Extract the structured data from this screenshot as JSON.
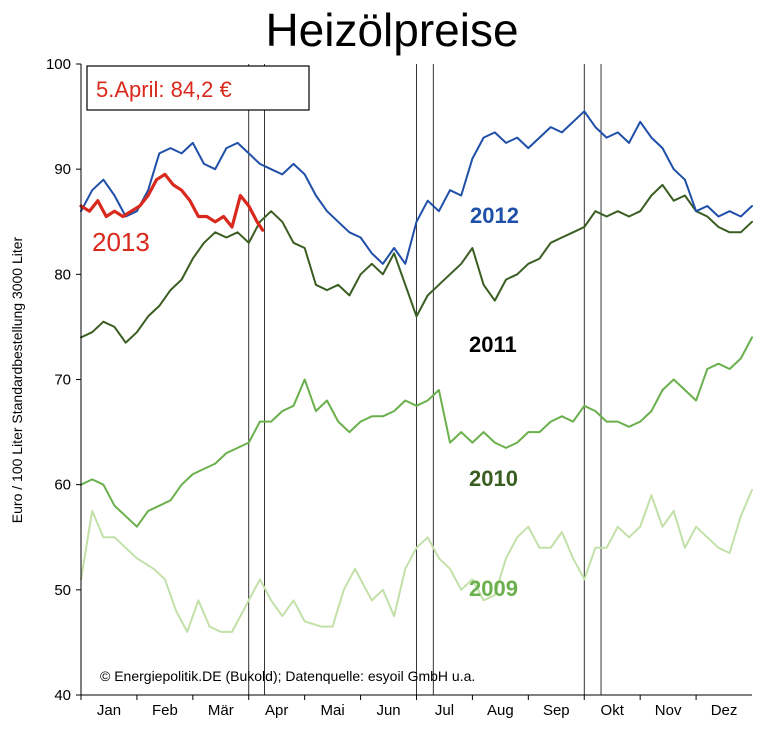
{
  "chart_data": {
    "type": "line",
    "title": "Heizölpreise",
    "ylabel": "Euro / 100 Liter Standardbestellung 3000 Liter",
    "ylim": [
      40,
      100
    ],
    "yticks": [
      40,
      50,
      60,
      70,
      80,
      90,
      100
    ],
    "months": [
      "Jan",
      "Feb",
      "Mär",
      "Apr",
      "Mai",
      "Jun",
      "Jul",
      "Aug",
      "Sep",
      "Okt",
      "Nov",
      "Dez"
    ],
    "annotation": "5.April: 84,2 €",
    "credit": "© Energiepolitik.DE (Bukold); Datenquelle: esyoil GmbH u.a.",
    "grid": "vertical quarter lines",
    "series": [
      {
        "name": "2009",
        "color": "#c2e0a8",
        "x": [
          0,
          0.2,
          0.4,
          0.6,
          0.8,
          1.0,
          1.3,
          1.5,
          1.7,
          1.9,
          2.1,
          2.3,
          2.5,
          2.7,
          2.9,
          3.2,
          3.4,
          3.6,
          3.8,
          4.0,
          4.3,
          4.5,
          4.7,
          4.9,
          5.2,
          5.4,
          5.6,
          5.8,
          6.0,
          6.2,
          6.4,
          6.6,
          6.8,
          7.0,
          7.2,
          7.4,
          7.6,
          7.8,
          8.0,
          8.2,
          8.4,
          8.6,
          8.8,
          9.0,
          9.2,
          9.4,
          9.6,
          9.8,
          10.0,
          10.2,
          10.4,
          10.6,
          10.8,
          11.0,
          11.2,
          11.4,
          11.6,
          11.8,
          12.0
        ],
        "values": [
          51,
          57.5,
          55,
          55,
          54,
          53,
          52,
          51,
          48,
          46,
          49,
          46.5,
          46,
          46,
          48,
          51,
          49,
          47.5,
          49,
          47,
          46.5,
          46.5,
          50,
          52,
          49,
          50,
          47.5,
          52,
          54,
          55,
          53,
          52,
          50,
          51,
          49,
          49.5,
          53,
          55,
          56,
          54,
          54,
          55.5,
          53,
          51,
          54,
          54,
          56,
          55,
          56,
          59,
          56,
          57.5,
          54,
          56,
          55,
          54,
          53.5,
          57,
          59.5
        ]
      },
      {
        "name": "2010",
        "color": "#6ab04c",
        "x": [
          0,
          0.2,
          0.4,
          0.6,
          0.8,
          1.0,
          1.2,
          1.4,
          1.6,
          1.8,
          2.0,
          2.2,
          2.4,
          2.6,
          2.8,
          3.0,
          3.2,
          3.4,
          3.6,
          3.8,
          4.0,
          4.2,
          4.4,
          4.6,
          4.8,
          5.0,
          5.2,
          5.4,
          5.6,
          5.8,
          6.0,
          6.2,
          6.4,
          6.6,
          6.8,
          7.0,
          7.2,
          7.4,
          7.6,
          7.8,
          8.0,
          8.2,
          8.4,
          8.6,
          8.8,
          9.0,
          9.2,
          9.4,
          9.6,
          9.8,
          10.0,
          10.2,
          10.4,
          10.6,
          10.8,
          11.0,
          11.2,
          11.4,
          11.6,
          11.8,
          12.0
        ],
        "values": [
          60,
          60.5,
          60,
          58,
          57,
          56,
          57.5,
          58,
          58.5,
          60,
          61,
          61.5,
          62,
          63,
          63.5,
          64,
          66,
          66,
          67,
          67.5,
          70,
          67,
          68,
          66,
          65,
          66,
          66.5,
          66.5,
          67,
          68,
          67.5,
          68,
          69,
          64,
          65,
          64,
          65,
          64,
          63.5,
          64,
          65,
          65,
          66,
          66.5,
          66,
          67.5,
          67,
          66,
          66,
          65.5,
          66,
          67,
          69,
          70,
          69,
          68,
          71,
          71.5,
          71,
          72,
          74
        ]
      },
      {
        "name": "2011",
        "color": "#3a5e22",
        "x": [
          0,
          0.2,
          0.4,
          0.6,
          0.8,
          1.0,
          1.2,
          1.4,
          1.6,
          1.8,
          2.0,
          2.2,
          2.4,
          2.6,
          2.8,
          3.0,
          3.2,
          3.4,
          3.6,
          3.8,
          4.0,
          4.2,
          4.4,
          4.6,
          4.8,
          5.0,
          5.2,
          5.4,
          5.6,
          5.8,
          6.0,
          6.2,
          6.4,
          6.6,
          6.8,
          7.0,
          7.2,
          7.4,
          7.6,
          7.8,
          8.0,
          8.2,
          8.4,
          8.6,
          8.8,
          9.0,
          9.2,
          9.4,
          9.6,
          9.8,
          10.0,
          10.2,
          10.4,
          10.6,
          10.8,
          11.0,
          11.2,
          11.4,
          11.6,
          11.8,
          12.0
        ],
        "values": [
          74,
          74.5,
          75.5,
          75,
          73.5,
          74.5,
          76,
          77,
          78.5,
          79.5,
          81.5,
          83,
          84,
          83.5,
          84,
          83,
          85,
          86,
          85,
          83,
          82.5,
          79,
          78.5,
          79,
          78,
          80,
          81,
          80,
          82,
          79,
          76,
          78,
          79,
          80,
          81,
          82.5,
          79,
          77.5,
          79.5,
          80,
          81,
          81.5,
          83,
          83.5,
          84,
          84.5,
          86,
          85.5,
          86,
          85.5,
          86,
          87.5,
          88.5,
          87,
          87.5,
          86,
          85.5,
          84.5,
          84,
          84,
          85
        ]
      },
      {
        "name": "2012",
        "color": "#1f4fa8",
        "x": [
          0,
          0.2,
          0.4,
          0.6,
          0.8,
          1.0,
          1.2,
          1.4,
          1.6,
          1.8,
          2.0,
          2.2,
          2.4,
          2.6,
          2.8,
          3.0,
          3.2,
          3.4,
          3.6,
          3.8,
          4.0,
          4.2,
          4.4,
          4.6,
          4.8,
          5.0,
          5.2,
          5.4,
          5.6,
          5.8,
          6.0,
          6.2,
          6.4,
          6.6,
          6.8,
          7.0,
          7.2,
          7.4,
          7.6,
          7.8,
          8.0,
          8.2,
          8.4,
          8.6,
          8.8,
          9.0,
          9.2,
          9.4,
          9.6,
          9.8,
          10.0,
          10.2,
          10.4,
          10.6,
          10.8,
          11.0,
          11.2,
          11.4,
          11.6,
          11.8,
          12.0
        ],
        "values": [
          86,
          88,
          89,
          87.5,
          85.5,
          86,
          88,
          91.5,
          92,
          91.5,
          92.5,
          90.5,
          90,
          92,
          92.5,
          91.5,
          90.5,
          90,
          89.5,
          90.5,
          89.5,
          87.5,
          86,
          85,
          84,
          83.5,
          82,
          81,
          82.5,
          81,
          85,
          87,
          86,
          88,
          87.5,
          91,
          93,
          93.5,
          92.5,
          93,
          92,
          93,
          94,
          93.5,
          94.5,
          95.5,
          94,
          93,
          93.5,
          92.5,
          94.5,
          93,
          92,
          90,
          89,
          86,
          86.5,
          85.5,
          86,
          85.5,
          86.5
        ]
      },
      {
        "name": "2013",
        "color": "#d9291c",
        "x": [
          0,
          0.15,
          0.3,
          0.45,
          0.6,
          0.75,
          0.9,
          1.05,
          1.2,
          1.35,
          1.5,
          1.65,
          1.8,
          1.95,
          2.1,
          2.25,
          2.4,
          2.55,
          2.7,
          2.85,
          3.0,
          3.15,
          3.25
        ],
        "values": [
          86.5,
          86,
          87,
          85.5,
          86,
          85.5,
          86,
          86.5,
          87.5,
          89,
          89.5,
          88.5,
          88,
          87,
          85.5,
          85.5,
          85,
          85.5,
          84.5,
          87.5,
          86.5,
          85,
          84.2
        ]
      }
    ]
  }
}
